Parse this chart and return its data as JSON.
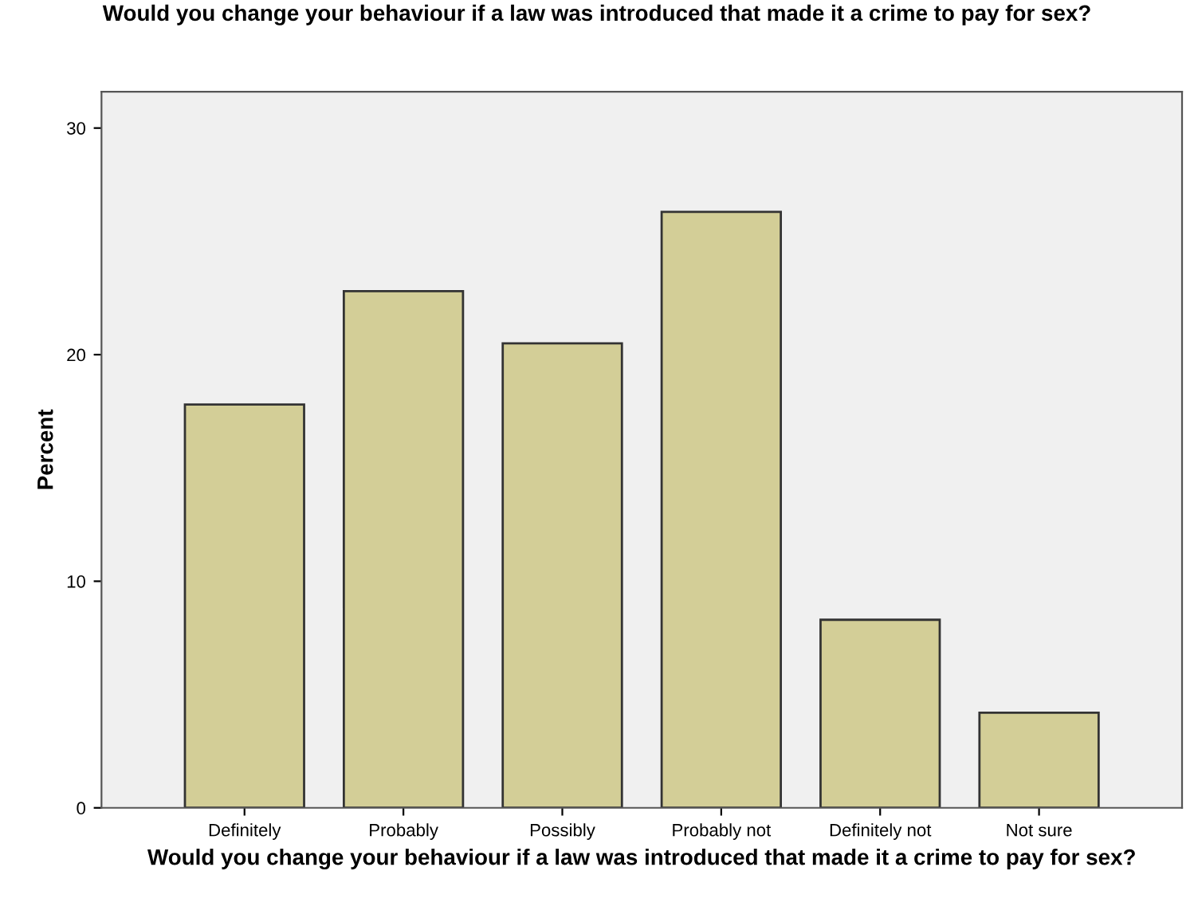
{
  "chart_data": {
    "type": "bar",
    "title": "Would you change your behaviour if a law was introduced that made it a crime to pay for sex?",
    "xlabel": "Would you change your behaviour if a law was introduced that made it a crime to pay for sex?",
    "ylabel": "Percent",
    "categories": [
      "Definitely",
      "Probably",
      "Possibly",
      "Probably not",
      "Definitely not",
      "Not sure"
    ],
    "values": [
      17.8,
      22.8,
      20.5,
      26.3,
      8.3,
      4.2
    ],
    "color": "#d3ce97",
    "ylim": [
      0,
      31.6
    ],
    "yticks": [
      0,
      10,
      20,
      30
    ],
    "grid": false
  }
}
